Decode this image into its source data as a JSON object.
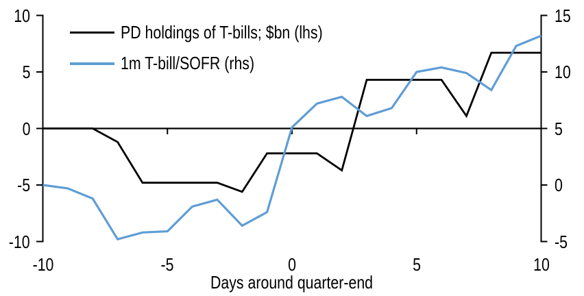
{
  "chart_data": {
    "type": "line",
    "title": "",
    "xlabel": "Days around quarter-end",
    "ylabel_left": "",
    "ylabel_right": "",
    "grid": false,
    "legend_position": "top-left",
    "x": [
      -10,
      -9,
      -8,
      -7,
      -6,
      -5,
      -4,
      -3,
      -2,
      -1,
      0,
      1,
      2,
      3,
      4,
      5,
      6,
      7,
      8,
      9,
      10
    ],
    "x_ticks": [
      -10,
      -5,
      0,
      5,
      10
    ],
    "left_axis": {
      "ticks": [
        10,
        5,
        0,
        -5,
        -10
      ],
      "range": [
        -10,
        10
      ]
    },
    "right_axis": {
      "ticks": [
        15,
        10,
        5,
        0,
        -5
      ],
      "range": [
        -5,
        15
      ]
    },
    "series": [
      {
        "name": "PD holdings of T-bills; $bn (lhs)",
        "axis": "left",
        "color": "#000000",
        "values": [
          0,
          0,
          0,
          -1.2,
          -4.8,
          -4.8,
          -4.8,
          -4.8,
          -5.6,
          -2.2,
          -2.2,
          -2.2,
          -3.7,
          4.3,
          4.3,
          4.3,
          4.3,
          1.1,
          6.7,
          6.7,
          6.7
        ]
      },
      {
        "name": "1m T-bill/SOFR (rhs)",
        "axis": "right",
        "color": "#5f9dd5",
        "values": [
          0,
          -0.3,
          -1.2,
          -4.8,
          -4.2,
          -4.1,
          -1.9,
          -1.3,
          -3.6,
          -2.4,
          5.1,
          7.2,
          7.8,
          6.1,
          6.8,
          10,
          10.4,
          9.9,
          8.4,
          12.3,
          13.2
        ]
      }
    ],
    "axis_color": "#000000"
  }
}
